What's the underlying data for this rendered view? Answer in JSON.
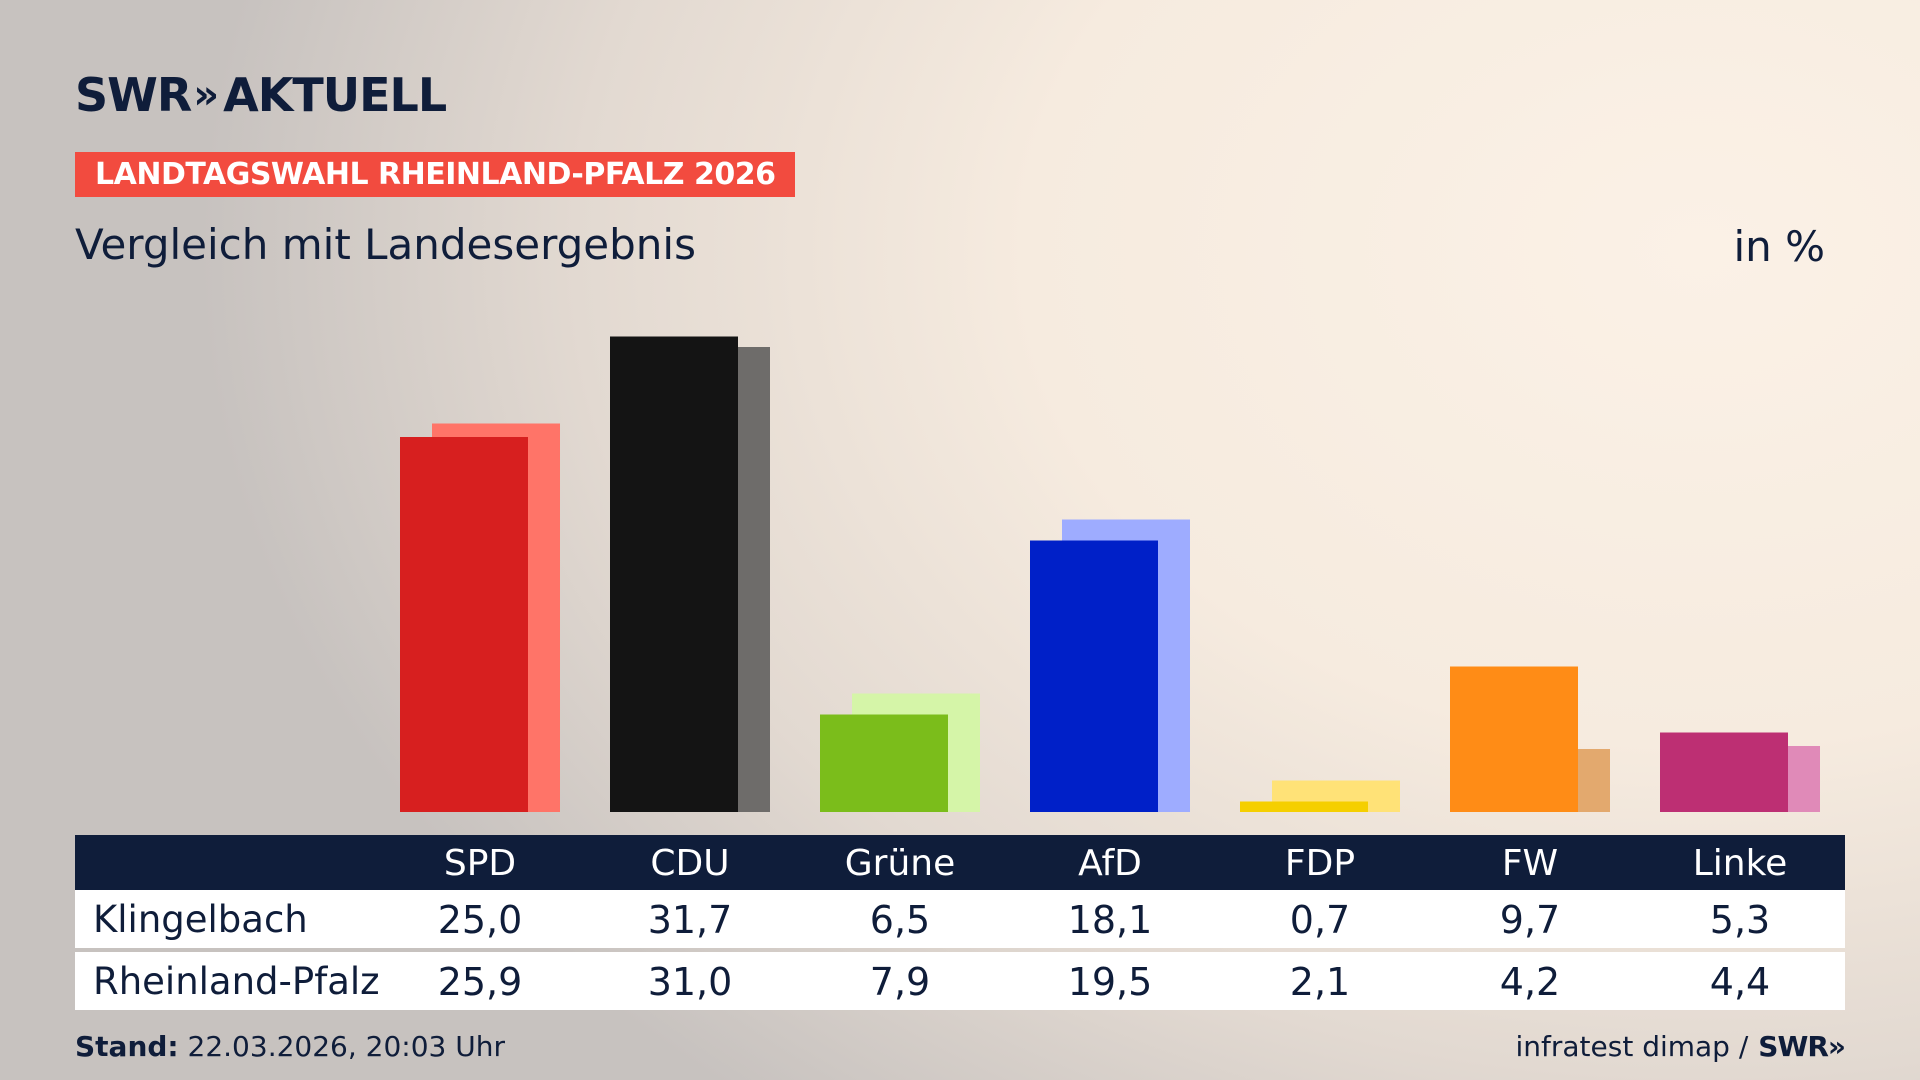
{
  "header": {
    "logo_text": "SWR",
    "logo_arrows": "»",
    "logo_suffix": "AKTUELL",
    "badge": "LANDTAGSWAHL RHEINLAND-PFALZ 2026",
    "subtitle": "Vergleich mit Landesergebnis",
    "unit": "in %"
  },
  "chart_data": {
    "type": "bar",
    "title": "Vergleich mit Landesergebnis",
    "ylabel": "in %",
    "categories": [
      "SPD",
      "CDU",
      "Grüne",
      "AfD",
      "FDP",
      "FW",
      "Linke"
    ],
    "series": [
      {
        "name": "Klingelbach",
        "values": [
          25.0,
          31.7,
          6.5,
          18.1,
          0.7,
          9.7,
          5.3
        ]
      },
      {
        "name": "Rheinland-Pfalz",
        "values": [
          25.9,
          31.0,
          7.9,
          19.5,
          2.1,
          4.2,
          4.4
        ]
      }
    ],
    "colors_primary": [
      "#d71f1f",
      "#141414",
      "#7bbd1b",
      "#0020c8",
      "#f5cf00",
      "#ff8c16",
      "#bd2f73"
    ],
    "colors_secondary": [
      "#ff7468",
      "#6e6c6a",
      "#d5f5a8",
      "#9eacff",
      "#ffe277",
      "#e3a96e",
      "#e08ab8"
    ],
    "ylim": [
      0,
      32
    ]
  },
  "table": {
    "headers": [
      "SPD",
      "CDU",
      "Grüne",
      "AfD",
      "FDP",
      "FW",
      "Linke"
    ],
    "rows": [
      {
        "label": "Klingelbach",
        "values": [
          "25,0",
          "31,7",
          "6,5",
          "18,1",
          "0,7",
          "9,7",
          "5,3"
        ]
      },
      {
        "label": "Rheinland-Pfalz",
        "values": [
          "25,9",
          "31,0",
          "7,9",
          "19,5",
          "2,1",
          "4,2",
          "4,4"
        ]
      }
    ]
  },
  "footer": {
    "stand_label": "Stand:",
    "stand_value": "22.03.2026, 20:03 Uhr",
    "source": "infratest dimap /",
    "source_logo": "SWR»"
  }
}
